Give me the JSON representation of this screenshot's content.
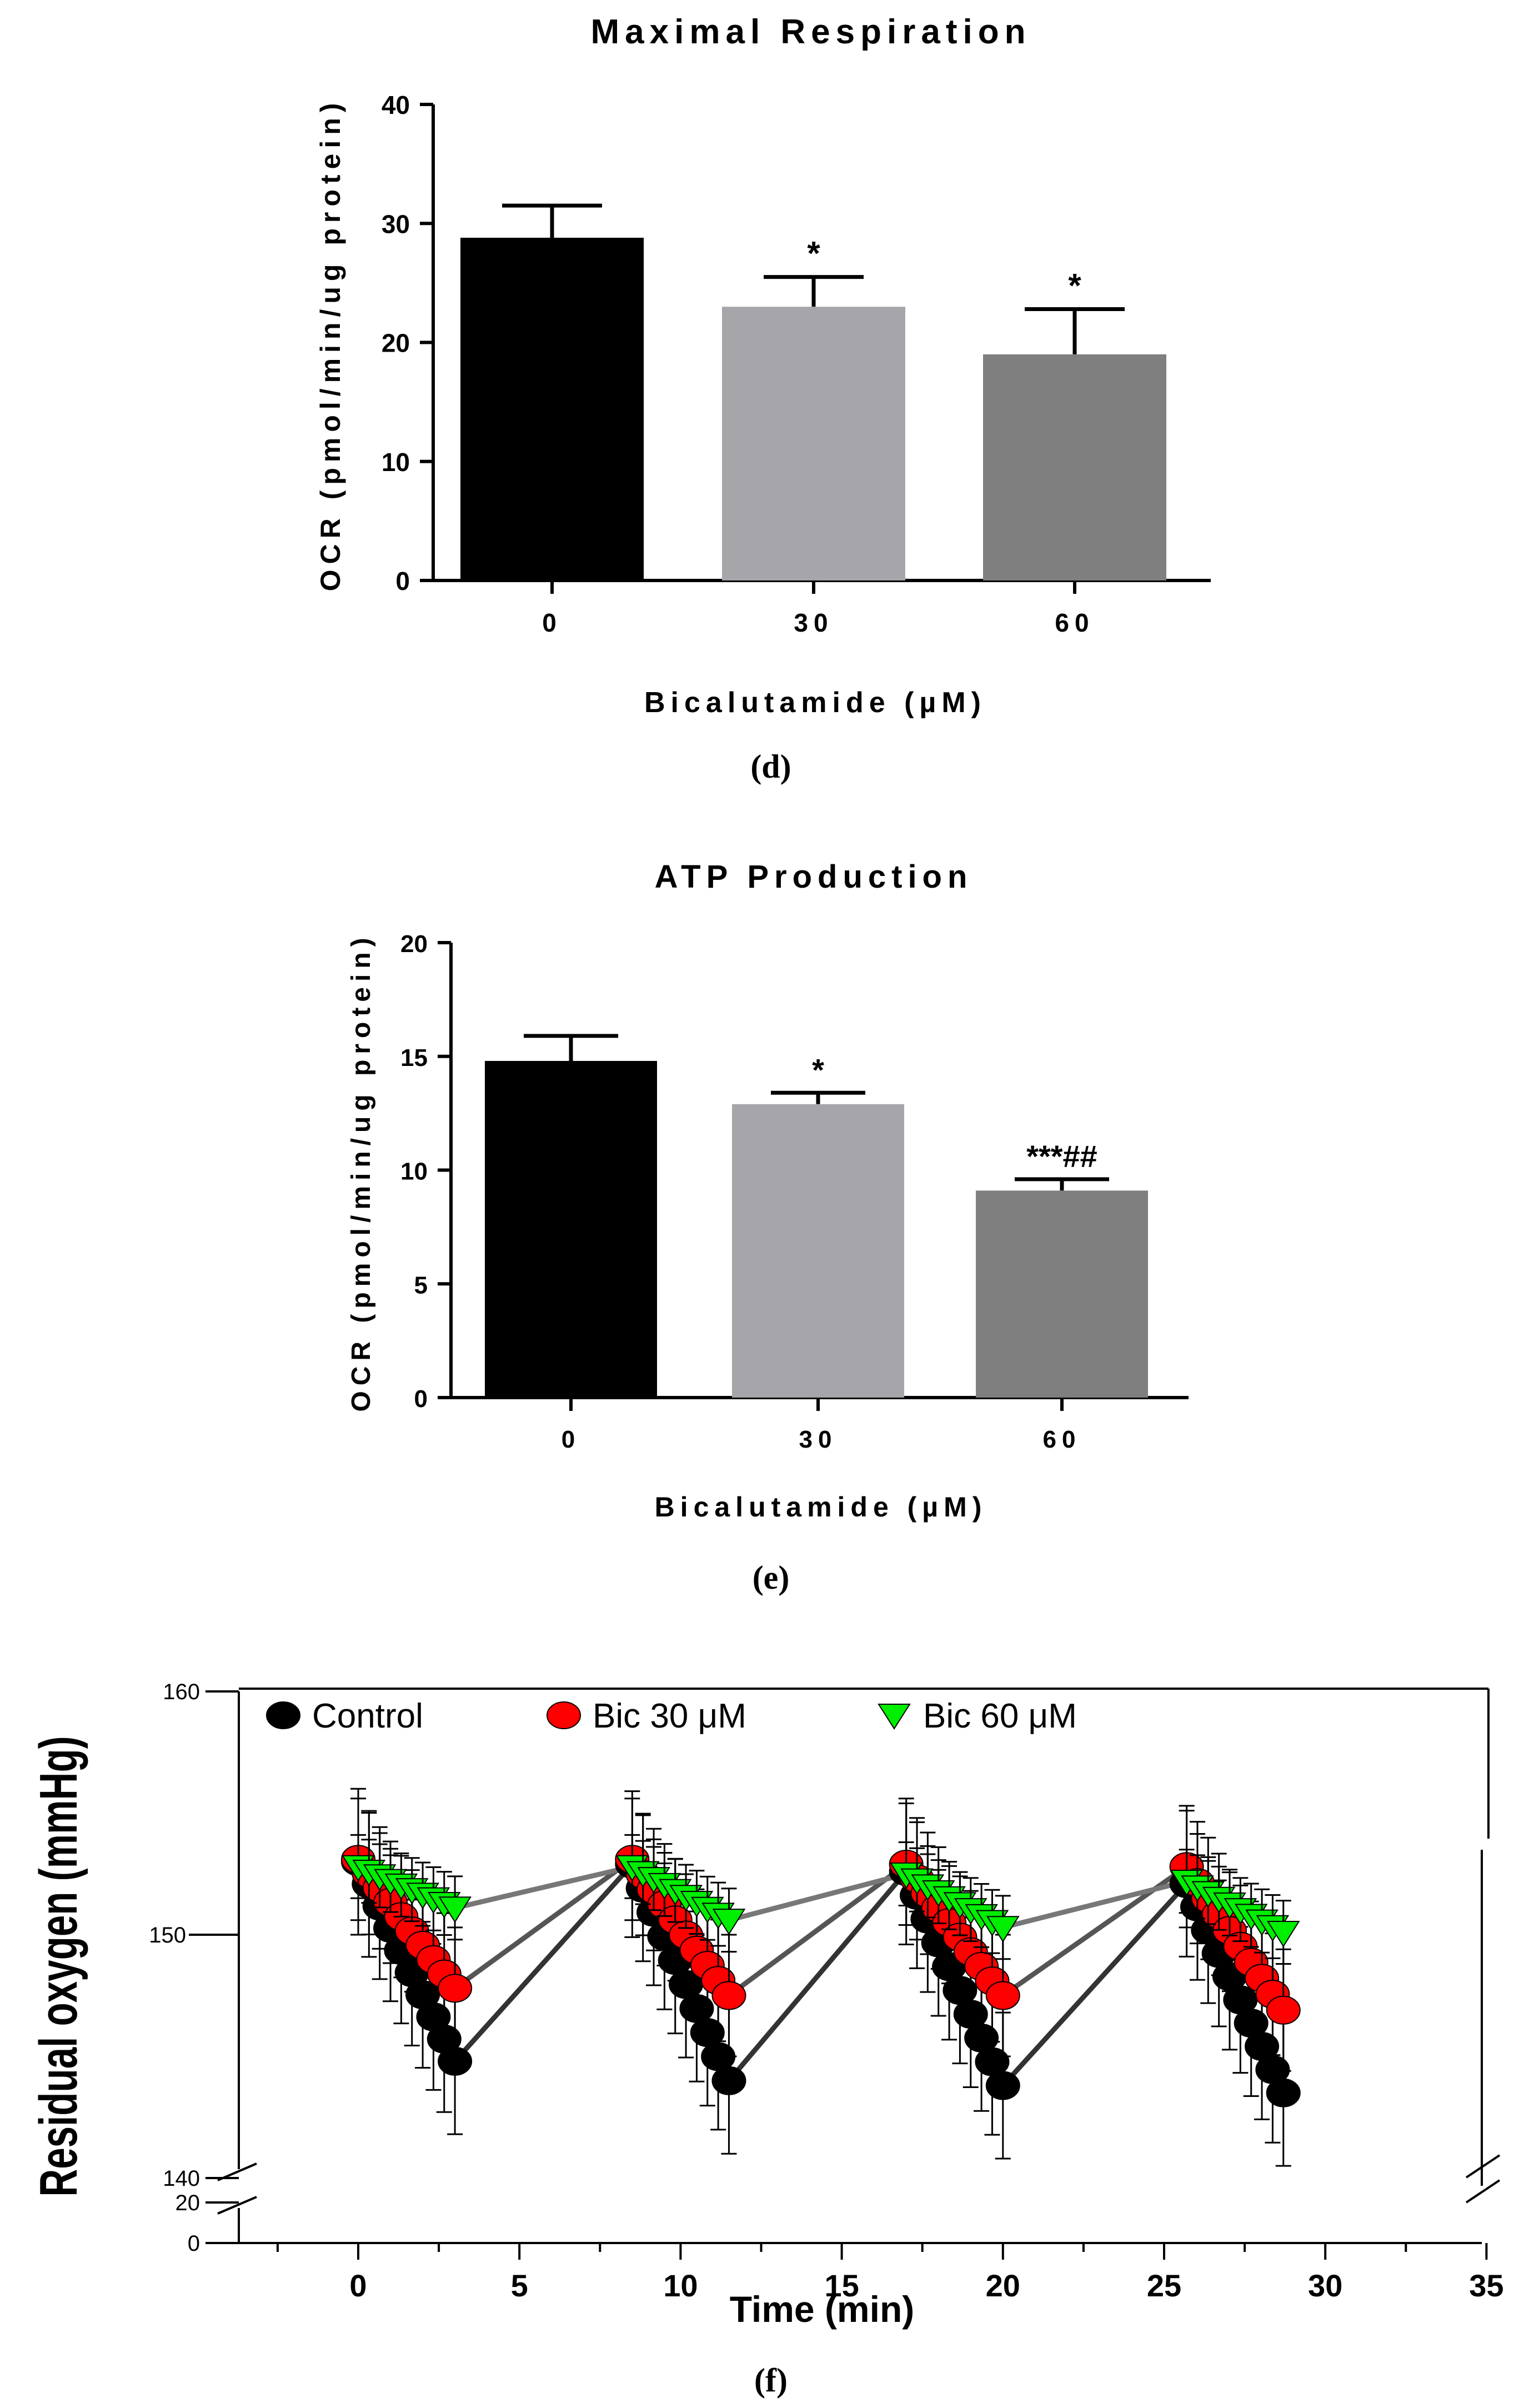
{
  "chart_data": [
    {
      "type": "bar",
      "title": "Maximal Respiration",
      "xlabel": "Bicalutamide (µM)",
      "ylabel": "OCR (pmol/min/ug protein)",
      "ylim": [
        0,
        40
      ],
      "yticks": [
        "0",
        "10",
        "20",
        "30",
        "40"
      ],
      "categories": [
        "0",
        "30",
        "60"
      ],
      "values": [
        28.8,
        23.0,
        19.0
      ],
      "errors": [
        2.7,
        2.5,
        3.8
      ],
      "annotations": [
        "",
        "*",
        "*"
      ],
      "colors": [
        "#000000",
        "#a6a6aa",
        "#7f7f7f"
      ],
      "panel_label": "(d)"
    },
    {
      "type": "bar",
      "title": "ATP Production",
      "xlabel": "Bicalutamide (µM)",
      "ylabel": "OCR (pmol/min/ug protein)",
      "ylim": [
        0,
        20
      ],
      "yticks": [
        "0",
        "5",
        "10",
        "15",
        "20"
      ],
      "categories": [
        "0",
        "30",
        "60"
      ],
      "values": [
        14.8,
        12.9,
        9.1
      ],
      "errors": [
        1.1,
        0.5,
        0.5
      ],
      "annotations": [
        "",
        "*",
        "***##"
      ],
      "colors": [
        "#000000",
        "#a6a6aa",
        "#7f7f7f"
      ],
      "panel_label": "(e)"
    },
    {
      "type": "scatter",
      "xlabel": "Time (min)",
      "ylabel": "Residual oxygen (mmHg)",
      "xlim": [
        -5,
        35
      ],
      "xticks": [
        "0",
        "5",
        "10",
        "15",
        "20",
        "25",
        "30",
        "35"
      ],
      "yticks": [
        "0",
        "20",
        "140",
        "150",
        "160"
      ],
      "legend_position": "top",
      "panel_label": "(f)",
      "series": [
        {
          "name": "Control",
          "color": "#000000",
          "marker": "circle",
          "cycles": [
            {
              "x": [
                0,
                3
              ],
              "y": [
                153.0,
                144.8
              ],
              "error": 3.0
            },
            {
              "x": [
                8.5,
                11.5
              ],
              "y": [
                152.9,
                144.0
              ],
              "error": 3.0
            },
            {
              "x": [
                17,
                20
              ],
              "y": [
                152.6,
                143.8
              ],
              "error": 3.0
            },
            {
              "x": [
                25.7,
                28.7
              ],
              "y": [
                152.1,
                143.5
              ],
              "error": 3.0
            }
          ]
        },
        {
          "name": "Bic 30 μM",
          "color": "#ff0000",
          "marker": "circle",
          "cycles": [
            {
              "x": [
                0,
                3
              ],
              "y": [
                153.1,
                147.8
              ],
              "error": 2.5
            },
            {
              "x": [
                8.5,
                11.5
              ],
              "y": [
                153.1,
                147.5
              ],
              "error": 2.5
            },
            {
              "x": [
                17,
                20
              ],
              "y": [
                152.9,
                147.5
              ],
              "error": 2.5
            },
            {
              "x": [
                25.7,
                28.7
              ],
              "y": [
                152.8,
                146.9
              ],
              "error": 2.5
            }
          ]
        },
        {
          "name": "Bic 60 μM",
          "color": "#00ee00",
          "marker": "triangle-down",
          "cycles": [
            {
              "x": [
                0,
                3
              ],
              "y": [
                152.8,
                151.1
              ],
              "error": 1.3
            },
            {
              "x": [
                8.5,
                11.5
              ],
              "y": [
                152.8,
                150.6
              ],
              "error": 1.3
            },
            {
              "x": [
                17,
                20
              ],
              "y": [
                152.5,
                150.3
              ],
              "error": 1.3
            },
            {
              "x": [
                25.7,
                28.7
              ],
              "y": [
                152.2,
                150.1
              ],
              "error": 1.3
            }
          ]
        }
      ]
    }
  ]
}
